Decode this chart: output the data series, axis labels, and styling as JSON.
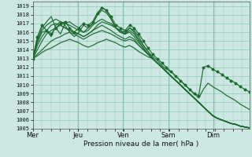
{
  "xlabel": "Pression niveau de la mer( hPa )",
  "ylim": [
    1005,
    1019.5
  ],
  "yticks": [
    1005,
    1006,
    1007,
    1008,
    1009,
    1010,
    1011,
    1012,
    1013,
    1014,
    1015,
    1016,
    1017,
    1018,
    1019
  ],
  "day_labels": [
    "Mer",
    "Jeu",
    "Ven",
    "Sam",
    "Dim"
  ],
  "day_positions": [
    0.0,
    0.208,
    0.417,
    0.625,
    0.833
  ],
  "xlim": [
    0.0,
    1.0
  ],
  "background_color": "#cde8e3",
  "grid_color": "#82c4b4",
  "line_color": "#1e6b30",
  "dot_color": "#1e6b30",
  "lines": [
    {
      "y": [
        1013.0,
        1013.3,
        1013.7,
        1014.0,
        1014.2,
        1014.5,
        1014.8,
        1015.0,
        1015.2,
        1015.0,
        1014.8,
        1014.5,
        1014.3,
        1014.5,
        1014.8,
        1015.0,
        1015.2,
        1015.0,
        1014.8,
        1014.5,
        1014.3,
        1014.5,
        1014.2,
        1013.8,
        1013.5,
        1013.2,
        1013.0,
        1012.5,
        1012.0,
        1011.5,
        1011.0,
        1010.5,
        1010.0,
        1009.5,
        1009.0,
        1008.5,
        1008.0,
        1007.5,
        1007.0,
        1006.5,
        1006.2,
        1006.0,
        1005.8,
        1005.6,
        1005.5,
        1005.3,
        1005.2,
        1005.1
      ],
      "dots": false
    },
    {
      "y": [
        1013.0,
        1013.5,
        1014.0,
        1014.5,
        1015.0,
        1015.3,
        1015.5,
        1015.8,
        1016.0,
        1015.8,
        1015.5,
        1015.2,
        1015.5,
        1015.8,
        1016.0,
        1016.2,
        1016.0,
        1015.8,
        1015.5,
        1015.2,
        1015.0,
        1015.2,
        1015.0,
        1014.5,
        1014.0,
        1013.5,
        1013.0,
        1012.5,
        1012.0,
        1011.5,
        1011.0,
        1010.5,
        1010.0,
        1009.5,
        1009.0,
        1008.5,
        1008.0,
        1007.5,
        1007.0,
        1006.5,
        1006.2,
        1006.0,
        1005.8,
        1005.6,
        1005.5,
        1005.3,
        1005.2,
        1005.1
      ],
      "dots": false
    },
    {
      "y": [
        1013.0,
        1014.0,
        1015.0,
        1015.8,
        1016.2,
        1016.5,
        1016.8,
        1016.5,
        1016.2,
        1016.0,
        1015.8,
        1015.5,
        1015.8,
        1016.2,
        1016.5,
        1016.8,
        1016.5,
        1016.2,
        1015.8,
        1015.5,
        1015.2,
        1015.5,
        1015.2,
        1014.5,
        1014.0,
        1013.5,
        1013.0,
        1012.5,
        1012.0,
        1011.5,
        1011.0,
        1010.5,
        1010.0,
        1009.5,
        1009.0,
        1008.5,
        1008.0,
        1007.5,
        1007.0,
        1006.5,
        1006.2,
        1006.0,
        1005.8,
        1005.6,
        1005.5,
        1005.3,
        1005.2,
        1005.1
      ],
      "dots": false
    },
    {
      "y": [
        1013.0,
        1014.5,
        1015.5,
        1016.2,
        1016.8,
        1017.0,
        1016.8,
        1016.5,
        1016.2,
        1016.0,
        1015.8,
        1015.5,
        1015.8,
        1016.2,
        1016.8,
        1017.2,
        1017.0,
        1016.8,
        1016.5,
        1016.0,
        1015.8,
        1016.0,
        1015.5,
        1014.8,
        1014.2,
        1013.5,
        1013.0,
        1012.5,
        1012.0,
        1011.5,
        1011.0,
        1010.5,
        1010.0,
        1009.5,
        1009.0,
        1008.5,
        1008.0,
        1007.5,
        1007.0,
        1006.5,
        1006.2,
        1006.0,
        1005.8,
        1005.6,
        1005.5,
        1005.3,
        1005.2,
        1005.1
      ],
      "dots": false
    },
    {
      "y": [
        1013.0,
        1015.0,
        1016.2,
        1016.8,
        1017.2,
        1017.5,
        1017.2,
        1017.0,
        1016.8,
        1016.5,
        1016.2,
        1016.0,
        1016.2,
        1016.8,
        1017.2,
        1017.5,
        1017.2,
        1017.0,
        1016.5,
        1016.0,
        1015.8,
        1016.2,
        1015.8,
        1015.0,
        1014.2,
        1013.5,
        1013.0,
        1012.5,
        1012.0,
        1011.5,
        1011.0,
        1010.5,
        1010.0,
        1009.5,
        1009.0,
        1008.5,
        1008.0,
        1007.5,
        1007.0,
        1006.5,
        1006.2,
        1006.0,
        1005.8,
        1005.6,
        1005.5,
        1005.3,
        1005.2,
        1005.1
      ],
      "dots": false
    },
    {
      "y": [
        1013.0,
        1015.2,
        1016.5,
        1017.2,
        1017.8,
        1016.5,
        1015.8,
        1017.0,
        1017.2,
        1016.8,
        1016.5,
        1016.0,
        1016.5,
        1017.0,
        1018.0,
        1018.5,
        1018.2,
        1017.5,
        1016.5,
        1016.2,
        1016.0,
        1016.5,
        1016.2,
        1015.5,
        1014.5,
        1013.8,
        1013.0,
        1012.5,
        1012.0,
        1011.5,
        1011.0,
        1010.5,
        1010.0,
        1009.5,
        1009.0,
        1008.5,
        1008.0,
        1007.5,
        1007.0,
        1006.5,
        1006.2,
        1006.0,
        1005.8,
        1005.6,
        1005.5,
        1005.3,
        1005.2,
        1005.1
      ],
      "dots": false
    },
    {
      "y": [
        1013.0,
        1015.5,
        1016.8,
        1016.2,
        1015.8,
        1016.5,
        1017.0,
        1017.2,
        1016.5,
        1016.0,
        1016.5,
        1017.0,
        1016.8,
        1017.2,
        1018.2,
        1018.8,
        1018.5,
        1017.8,
        1016.8,
        1016.5,
        1016.2,
        1016.8,
        1016.5,
        1015.8,
        1015.0,
        1014.2,
        1013.5,
        1013.0,
        1012.5,
        1012.0,
        1011.5,
        1011.0,
        1010.5,
        1010.0,
        1009.5,
        1009.0,
        1008.8,
        1012.0,
        1012.2,
        1011.8,
        1011.5,
        1011.2,
        1010.8,
        1010.5,
        1010.2,
        1009.8,
        1009.5,
        1009.2
      ],
      "dots": true
    },
    {
      "y": [
        1013.0,
        1014.8,
        1016.0,
        1016.2,
        1015.5,
        1016.8,
        1017.2,
        1016.8,
        1016.0,
        1015.5,
        1016.0,
        1016.8,
        1016.5,
        1017.0,
        1018.0,
        1018.8,
        1018.5,
        1017.5,
        1016.5,
        1016.2,
        1015.8,
        1016.5,
        1016.0,
        1015.2,
        1014.5,
        1013.8,
        1013.2,
        1012.8,
        1012.2,
        1011.8,
        1011.5,
        1011.0,
        1010.5,
        1010.0,
        1009.5,
        1009.0,
        1008.5,
        1009.5,
        1010.2,
        1009.8,
        1009.5,
        1009.2,
        1008.8,
        1008.5,
        1008.2,
        1007.8,
        1007.5,
        1007.2
      ],
      "dots": false
    }
  ]
}
